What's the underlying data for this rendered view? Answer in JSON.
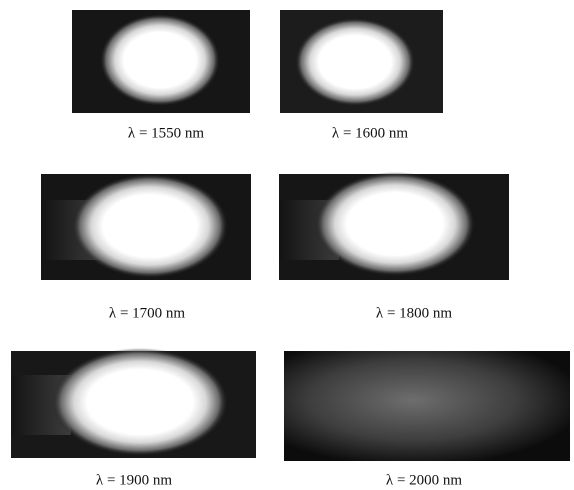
{
  "panels": [
    {
      "caption": "λ = 1550 nm"
    },
    {
      "caption": "λ = 1600 nm"
    },
    {
      "caption": "λ = 1700 nm"
    },
    {
      "caption": "λ = 1800 nm"
    },
    {
      "caption": "λ = 1900 nm"
    },
    {
      "caption": "λ = 2000 nm"
    }
  ]
}
